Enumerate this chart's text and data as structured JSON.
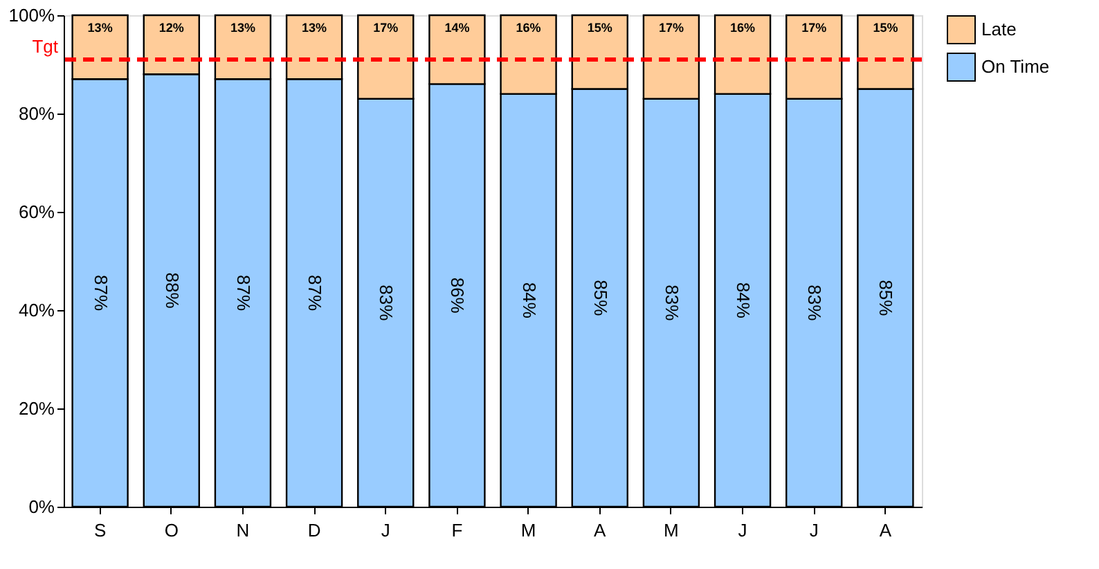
{
  "chart_data": {
    "type": "bar",
    "stacked": true,
    "categories": [
      "S",
      "O",
      "N",
      "D",
      "J",
      "F",
      "M",
      "A",
      "M",
      "J",
      "J",
      "A"
    ],
    "series": [
      {
        "name": "On Time",
        "color": "#99ccff",
        "values": [
          87,
          88,
          87,
          87,
          83,
          86,
          84,
          85,
          83,
          84,
          83,
          85
        ],
        "value_labels": [
          "87%",
          "88%",
          "87%",
          "87%",
          "83%",
          "86%",
          "84%",
          "85%",
          "83%",
          "84%",
          "83%",
          "85%"
        ]
      },
      {
        "name": "Late",
        "color": "#ffcc99",
        "values": [
          13,
          12,
          13,
          13,
          17,
          14,
          16,
          15,
          17,
          16,
          17,
          15
        ],
        "value_labels": [
          "13%",
          "12%",
          "13%",
          "13%",
          "17%",
          "14%",
          "16%",
          "15%",
          "17%",
          "16%",
          "17%",
          "15%"
        ]
      }
    ],
    "ylim": [
      0,
      100
    ],
    "yticks": [
      {
        "value": 0,
        "label": "0%"
      },
      {
        "value": 20,
        "label": "20%"
      },
      {
        "value": 40,
        "label": "40%"
      },
      {
        "value": 60,
        "label": "60%"
      },
      {
        "value": 80,
        "label": "80%"
      },
      {
        "value": 100,
        "label": "100%"
      }
    ],
    "ref_lines": [
      {
        "axis": "y",
        "value": 91,
        "label": "Tgt",
        "color": "#ff0000",
        "line_style": "dashed"
      }
    ],
    "legend": "right",
    "grid": false
  }
}
